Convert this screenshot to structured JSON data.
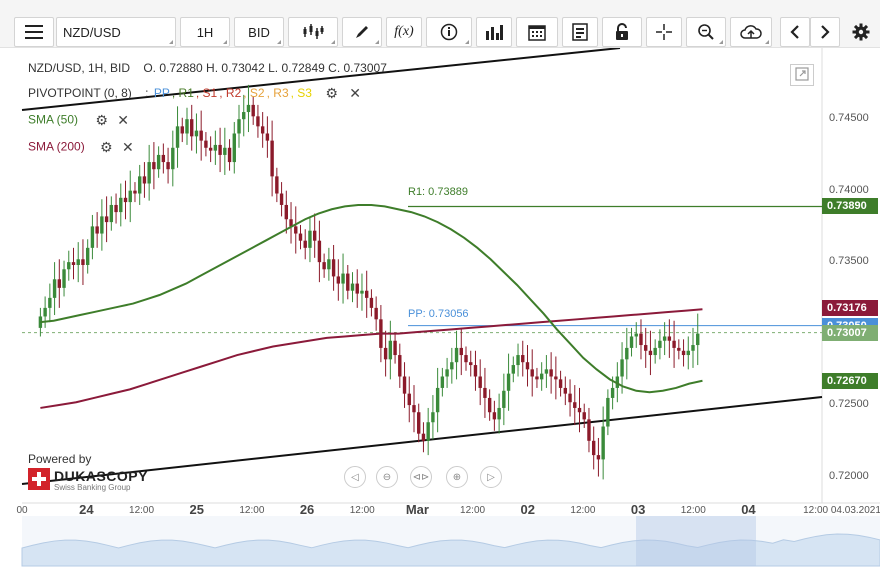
{
  "toolbar": {
    "symbol": "NZD/USD",
    "timeframe": "1H",
    "price_type": "BID",
    "fx_label": "f(x)"
  },
  "legend": {
    "ohlc_line": "NZD/USD, 1H, BID    O. 0.72880 H. 0.73042 L. 0.72849 C. 0.73007",
    "pivot_label": "PIVOTPOINT (0, 8)",
    "pivot_sep": ":",
    "pivot_items": [
      {
        "text": "PP",
        "color": "#4a90d9"
      },
      {
        "text": "R1",
        "color": "#4a7d2a"
      },
      {
        "text": "S1",
        "color": "#c0392b"
      },
      {
        "text": "R2",
        "color": "#c0392b"
      },
      {
        "text": "S2",
        "color": "#e6a23c"
      },
      {
        "text": "R3",
        "color": "#e6a23c"
      },
      {
        "text": "S3",
        "color": "#e6d200"
      }
    ],
    "sma50": "SMA (50)",
    "sma200": "SMA (200)"
  },
  "branding": {
    "powered_by": "Powered by",
    "name": "DUKASCOPY",
    "tagline": "Swiss Banking Group"
  },
  "annotations": {
    "r1": "R1: 0.73889",
    "pp": "PP: 0.73056"
  },
  "price_tags": [
    {
      "label": "0.73890",
      "color": "#3e7d2a",
      "value": 0.7389
    },
    {
      "label": "0.73176",
      "color": "#8b1a3a",
      "value": 0.73176
    },
    {
      "label": "0.73050",
      "color": "#4a90d9",
      "value": 0.7305
    },
    {
      "label": "0.73007",
      "color": "#7fae73",
      "value": 0.73007
    },
    {
      "label": "0.72670",
      "color": "#3e7d2a",
      "value": 0.7267
    }
  ],
  "colors": {
    "up": "#3a8a3a",
    "down": "#8b1a2a",
    "sma50": "#3e7d2a",
    "sma200": "#8b1a3a",
    "r1": "#3e7d2a",
    "pp": "#4a90d9"
  },
  "chart_data": {
    "type": "candlestick",
    "title": "NZD/USD, 1H, BID",
    "y_ticks": [
      "0.74500",
      "0.74000",
      "0.73500",
      "0.73000",
      "0.72500",
      "0.72000"
    ],
    "y_tick_values": [
      0.745,
      0.74,
      0.735,
      0.73,
      0.725,
      0.72
    ],
    "ylim": [
      0.7185,
      0.7497
    ],
    "x_ticks": [
      {
        "label": "00",
        "big": false,
        "t": -2
      },
      {
        "label": "24",
        "big": true,
        "t": 10
      },
      {
        "label": "12:00",
        "big": false,
        "t": 22
      },
      {
        "label": "25",
        "big": true,
        "t": 34
      },
      {
        "label": "12:00",
        "big": false,
        "t": 46
      },
      {
        "label": "26",
        "big": true,
        "t": 58
      },
      {
        "label": "12:00",
        "big": false,
        "t": 70
      },
      {
        "label": "Mar",
        "big": true,
        "t": 82
      },
      {
        "label": "12:00",
        "big": false,
        "t": 94
      },
      {
        "label": "02",
        "big": true,
        "t": 106
      },
      {
        "label": "12:00",
        "big": false,
        "t": 118
      },
      {
        "label": "03",
        "big": true,
        "t": 130
      },
      {
        "label": "12:00",
        "big": false,
        "t": 142
      },
      {
        "label": "04",
        "big": true,
        "t": 154
      },
      {
        "label": "12:00 04.03.2021",
        "big": false,
        "t": 166
      }
    ],
    "last_ohlc": {
      "open": 0.7288,
      "high": 0.73042,
      "low": 0.72849,
      "close": 0.73007
    },
    "closes": [
      0.7312,
      0.7318,
      0.7325,
      0.7338,
      0.7332,
      0.7345,
      0.735,
      0.7348,
      0.7352,
      0.7348,
      0.736,
      0.7375,
      0.737,
      0.7382,
      0.7378,
      0.739,
      0.7385,
      0.7395,
      0.7392,
      0.74,
      0.7398,
      0.741,
      0.7405,
      0.742,
      0.7415,
      0.7425,
      0.742,
      0.7415,
      0.743,
      0.7445,
      0.744,
      0.745,
      0.7438,
      0.7442,
      0.7435,
      0.743,
      0.7428,
      0.7432,
      0.7425,
      0.743,
      0.742,
      0.744,
      0.745,
      0.7455,
      0.746,
      0.7452,
      0.7445,
      0.744,
      0.7435,
      0.741,
      0.7398,
      0.739,
      0.738,
      0.7375,
      0.737,
      0.7365,
      0.736,
      0.7372,
      0.7365,
      0.735,
      0.7345,
      0.7352,
      0.734,
      0.7335,
      0.7342,
      0.733,
      0.7335,
      0.7328,
      0.733,
      0.7325,
      0.7318,
      0.731,
      0.729,
      0.7282,
      0.7295,
      0.7285,
      0.727,
      0.7258,
      0.725,
      0.7245,
      0.723,
      0.7225,
      0.7238,
      0.7245,
      0.7262,
      0.727,
      0.7275,
      0.728,
      0.729,
      0.7285,
      0.728,
      0.7278,
      0.727,
      0.7262,
      0.7255,
      0.7245,
      0.724,
      0.7248,
      0.726,
      0.7272,
      0.7278,
      0.7285,
      0.728,
      0.7275,
      0.727,
      0.7268,
      0.7272,
      0.7275,
      0.727,
      0.7268,
      0.7262,
      0.7258,
      0.7252,
      0.7248,
      0.7245,
      0.724,
      0.7225,
      0.7215,
      0.7212,
      0.7235,
      0.7255,
      0.7262,
      0.727,
      0.7282,
      0.729,
      0.7298,
      0.73,
      0.7292,
      0.7288,
      0.7285,
      0.729,
      0.7295,
      0.7298,
      0.7295,
      0.729,
      0.7288,
      0.7285,
      0.7288,
      0.7292,
      0.73
    ],
    "sma50": [
      0.7308,
      0.7309,
      0.7311,
      0.7313,
      0.7315,
      0.7317,
      0.7319,
      0.7321,
      0.7324,
      0.7327,
      0.7331,
      0.7335,
      0.734,
      0.7345,
      0.735,
      0.7355,
      0.736,
      0.7365,
      0.737,
      0.7375,
      0.738,
      0.7384,
      0.7387,
      0.7389,
      0.739,
      0.739,
      0.7389,
      0.7387,
      0.7385,
      0.7382,
      0.7378,
      0.7373,
      0.7367,
      0.736,
      0.7352,
      0.7343,
      0.7334,
      0.7324,
      0.7314,
      0.7303,
      0.7293,
      0.7283,
      0.7275,
      0.7268,
      0.7263,
      0.726,
      0.7259,
      0.726,
      0.7262,
      0.7265,
      0.7267
    ],
    "sma200": [
      0.7248,
      0.725,
      0.7252,
      0.7255,
      0.7258,
      0.7261,
      0.7265,
      0.7269,
      0.7273,
      0.7277,
      0.7281,
      0.7285,
      0.7288,
      0.7291,
      0.7293,
      0.7295,
      0.7297,
      0.7298,
      0.7299,
      0.73,
      0.73,
      0.7301,
      0.7302,
      0.7303,
      0.7304,
      0.7305,
      0.7306,
      0.7307,
      0.7308,
      0.7309,
      0.731,
      0.7311,
      0.7312,
      0.7313,
      0.7314,
      0.7315,
      0.7316,
      0.7317
    ]
  }
}
